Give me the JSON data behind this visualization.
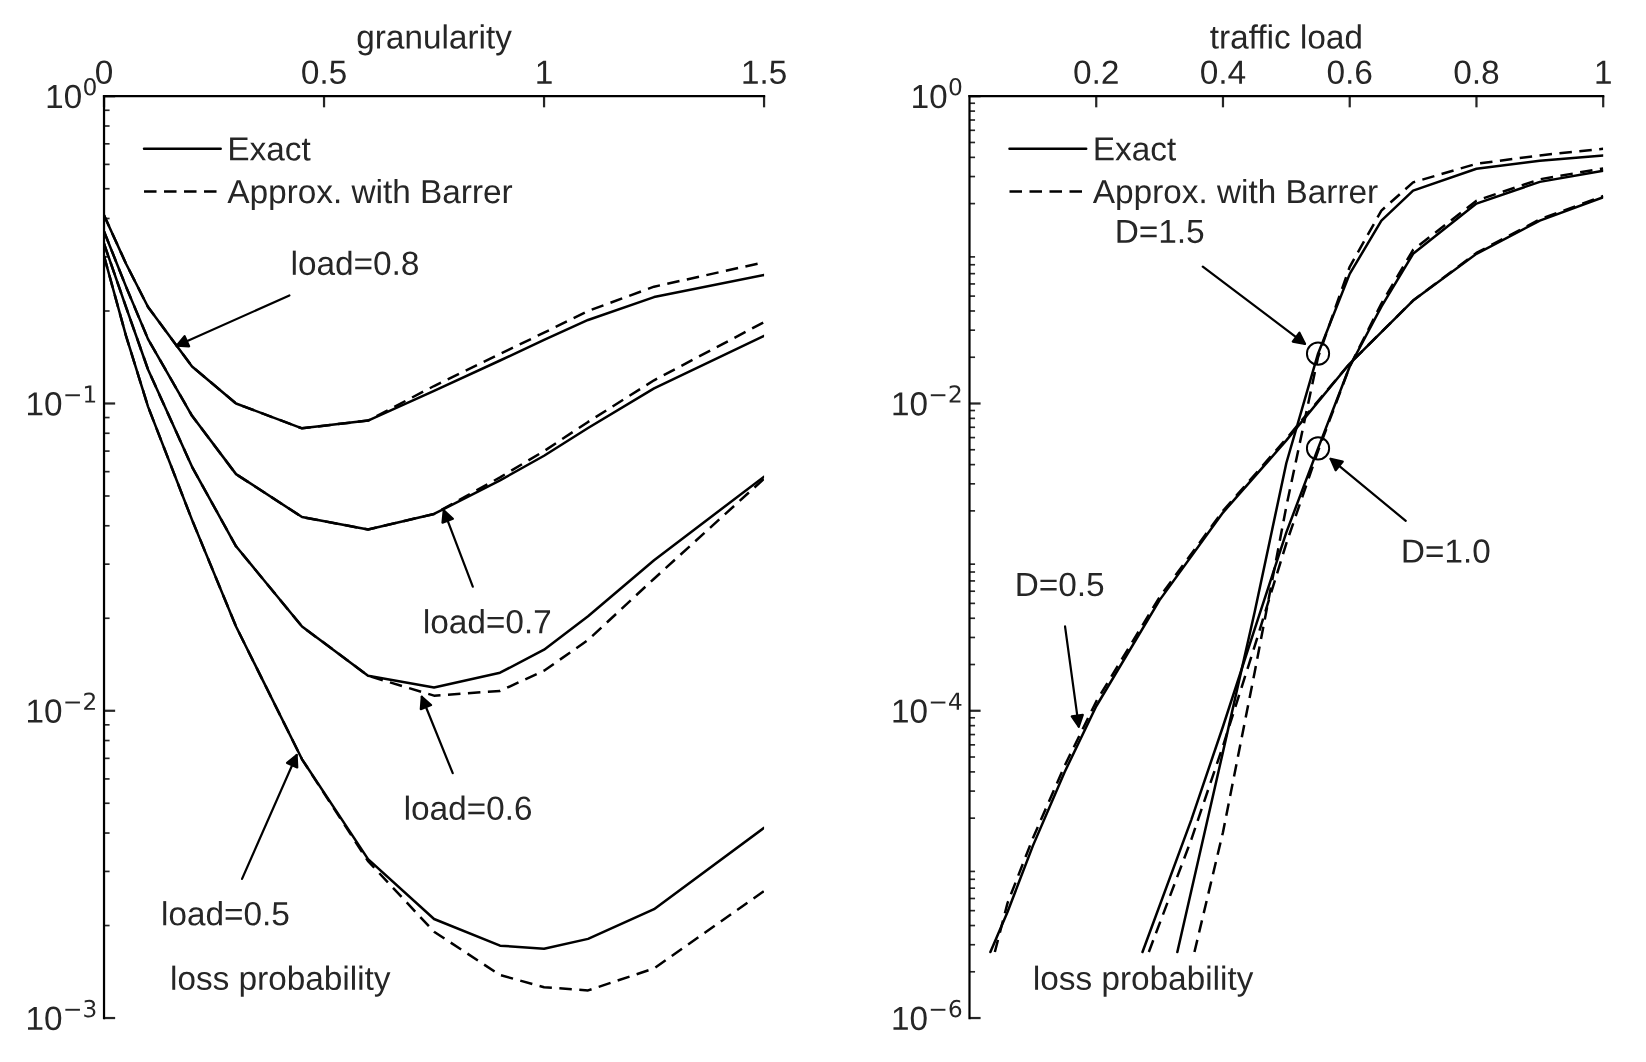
{
  "chart_data": [
    {
      "type": "line",
      "xlabel": "granularity",
      "ylabel": "loss probability",
      "log": "y",
      "legend": "top left",
      "xlim": [
        0,
        1.5
      ],
      "xticks": [
        0,
        0.5,
        1,
        1.5
      ],
      "ylim": [
        0.001,
        1
      ],
      "yticks": [
        {
          "value": 1,
          "label": "10$^{0}$"
        },
        {
          "value": 0.1,
          "label": "10$^{−1}$"
        },
        {
          "value": 0.01,
          "label": "10$^{−2}$"
        },
        {
          "value": 0.001,
          "label": "10$^{−3}$"
        }
      ],
      "series": [
        {
          "name": "Exact",
          "color": "#000000",
          "line_style": "solid",
          "x": [
            0,
            0.05,
            0.1,
            0.2,
            0.3,
            0.45,
            0.6,
            0.75,
            0.9,
            1.0,
            1.1,
            1.25,
            1.5
          ],
          "values": [
            0.41,
            0.285,
            0.206,
            0.132,
            0.1,
            0.083,
            0.088,
            0.11,
            0.138,
            0.161,
            0.187,
            0.222,
            0.262
          ]
        },
        {
          "name": "Approx. with Barrer",
          "color": "#000000",
          "line_style": "dashed",
          "x": [
            0,
            0.05,
            0.1,
            0.2,
            0.3,
            0.45,
            0.6,
            0.75,
            0.9,
            1.0,
            1.1,
            1.25,
            1.5
          ],
          "values": [
            0.41,
            0.285,
            0.206,
            0.132,
            0.1,
            0.083,
            0.088,
            0.114,
            0.145,
            0.17,
            0.2,
            0.24,
            0.288
          ]
        },
        {
          "color": "#000000",
          "line_style": "solid",
          "x": [
            0,
            0.05,
            0.1,
            0.2,
            0.3,
            0.45,
            0.6,
            0.75,
            0.9,
            1.0,
            1.1,
            1.25,
            1.5
          ],
          "values": [
            0.363,
            0.24,
            0.162,
            0.0912,
            0.0589,
            0.0427,
            0.0389,
            0.0437,
            0.0562,
            0.0676,
            0.0832,
            0.112,
            0.166
          ]
        },
        {
          "color": "#000000",
          "line_style": "dashed",
          "x": [
            0,
            0.05,
            0.1,
            0.2,
            0.3,
            0.45,
            0.6,
            0.75,
            0.9,
            1.0,
            1.1,
            1.25,
            1.5
          ],
          "values": [
            0.363,
            0.24,
            0.162,
            0.0912,
            0.0589,
            0.0427,
            0.0389,
            0.0437,
            0.0575,
            0.07,
            0.0871,
            0.119,
            0.184
          ]
        },
        {
          "color": "#000000",
          "line_style": "solid",
          "x": [
            0,
            0.05,
            0.1,
            0.2,
            0.3,
            0.45,
            0.6,
            0.75,
            0.9,
            1.0,
            1.1,
            1.25,
            1.5
          ],
          "values": [
            0.331,
            0.206,
            0.129,
            0.0622,
            0.0343,
            0.0188,
            0.013,
            0.0119,
            0.0133,
            0.0158,
            0.0203,
            0.0309,
            0.0578
          ]
        },
        {
          "color": "#000000",
          "line_style": "dashed",
          "x": [
            0,
            0.05,
            0.1,
            0.2,
            0.3,
            0.45,
            0.6,
            0.75,
            0.9,
            1.0,
            1.1,
            1.25,
            1.5
          ],
          "values": [
            0.331,
            0.206,
            0.129,
            0.0622,
            0.0343,
            0.0188,
            0.013,
            0.0112,
            0.0116,
            0.0135,
            0.017,
            0.0269,
            0.0569
          ]
        },
        {
          "color": "#000000",
          "line_style": "solid",
          "x": [
            0,
            0.05,
            0.1,
            0.2,
            0.3,
            0.45,
            0.6,
            0.75,
            0.9,
            1.0,
            1.1,
            1.25,
            1.5
          ],
          "values": [
            0.302,
            0.166,
            0.0977,
            0.0418,
            0.0188,
            0.00695,
            0.00329,
            0.0021,
            0.00172,
            0.00168,
            0.00181,
            0.00226,
            0.00416
          ]
        },
        {
          "color": "#000000",
          "line_style": "dashed",
          "x": [
            0,
            0.05,
            0.1,
            0.2,
            0.3,
            0.45,
            0.6,
            0.75,
            0.9,
            1.0,
            1.1,
            1.25,
            1.5
          ],
          "values": [
            0.302,
            0.166,
            0.0977,
            0.0418,
            0.0188,
            0.00695,
            0.00324,
            0.00191,
            0.00138,
            0.00126,
            0.00123,
            0.00145,
            0.00259
          ]
        }
      ],
      "annotations": [
        {
          "text": "load=0.8",
          "x": 0.16,
          "y": 0.153
        },
        {
          "text": "load=0.7",
          "x": 0.77,
          "y": 0.0457
        },
        {
          "text": "load=0.6",
          "x": 0.72,
          "y": 0.0113
        },
        {
          "text": "load=0.5",
          "x": 0.44,
          "y": 0.0073
        }
      ]
    },
    {
      "type": "line",
      "xlabel": "traffic load",
      "ylabel": "loss probability",
      "log": "y",
      "legend": "top left",
      "xlim": [
        0,
        1
      ],
      "xticks": [
        0.2,
        0.4,
        0.6,
        0.8,
        1
      ],
      "ylim": [
        1e-06,
        1
      ],
      "yticks": [
        {
          "value": 1,
          "label": "10$^{0}$"
        },
        {
          "value": 0.01,
          "label": "10$^{−2}$"
        },
        {
          "value": 0.0001,
          "label": "10$^{−4}$"
        },
        {
          "value": 1e-06,
          "label": "10$^{−6}$"
        }
      ],
      "series": [
        {
          "name": "Exact",
          "color": "#000000",
          "line_style": "solid",
          "x": [
            0.033,
            0.06,
            0.1,
            0.15,
            0.2,
            0.3,
            0.4,
            0.5,
            0.6,
            0.7,
            0.8,
            0.9,
            1.0
          ],
          "values": [
            2.69e-06,
            4.9e-06,
            1.32e-05,
            3.98e-05,
            0.000107,
            0.000525,
            0.00195,
            0.00575,
            0.0182,
            0.0468,
            0.0942,
            0.155,
            0.22
          ]
        },
        {
          "name": "Approx. with Barrer",
          "color": "#000000",
          "line_style": "dashed",
          "x": [
            0.04,
            0.06,
            0.1,
            0.15,
            0.2,
            0.3,
            0.4,
            0.5,
            0.6,
            0.7,
            0.8,
            0.9,
            1.0
          ],
          "values": [
            2.69e-06,
            5.6e-06,
            1.48e-05,
            4.37e-05,
            0.000115,
            0.00055,
            0.002,
            0.0059,
            0.0182,
            0.0468,
            0.0955,
            0.158,
            0.224
          ]
        },
        {
          "color": "#000000",
          "line_style": "solid",
          "x": [
            0.273,
            0.35,
            0.4,
            0.45,
            0.5,
            0.55,
            0.6,
            0.65,
            0.7,
            0.8,
            0.9,
            1.0
          ],
          "values": [
            2.69e-06,
            1.95e-05,
            7.9e-05,
            0.00034,
            0.00145,
            0.0051,
            0.0174,
            0.0427,
            0.0942,
            0.2,
            0.277,
            0.327
          ]
        },
        {
          "color": "#000000",
          "line_style": "dashed",
          "x": [
            0.283,
            0.35,
            0.4,
            0.45,
            0.5,
            0.55,
            0.6,
            0.65,
            0.7,
            0.8,
            0.9,
            1.0
          ],
          "values": [
            2.69e-06,
            1.45e-05,
            5.9e-05,
            0.000263,
            0.00123,
            0.0049,
            0.0174,
            0.0447,
            0.1,
            0.209,
            0.288,
            0.339
          ]
        },
        {
          "color": "#000000",
          "line_style": "solid",
          "x": [
            0.328,
            0.4,
            0.45,
            0.5,
            0.55,
            0.6,
            0.65,
            0.7,
            0.8,
            0.9,
            1.0
          ],
          "values": [
            2.69e-06,
            5.4e-05,
            0.00044,
            0.0041,
            0.0211,
            0.0698,
            0.155,
            0.243,
            0.337,
            0.38,
            0.412
          ]
        },
        {
          "color": "#000000",
          "line_style": "dashed",
          "x": [
            0.355,
            0.4,
            0.45,
            0.5,
            0.55,
            0.6,
            0.65,
            0.7,
            0.8,
            0.9,
            1.0
          ],
          "values": [
            2.69e-06,
            1.62e-05,
            0.000178,
            0.00214,
            0.02,
            0.0776,
            0.18,
            0.275,
            0.363,
            0.412,
            0.455
          ]
        }
      ],
      "annotations": [
        {
          "text": "D=1.5",
          "x": 0.55,
          "y": 0.0211
        },
        {
          "text": "D=1.0",
          "x": 0.55,
          "y": 0.0051
        },
        {
          "text": "D=0.5",
          "x": 0.173,
          "y": 7.6e-05
        }
      ]
    }
  ]
}
